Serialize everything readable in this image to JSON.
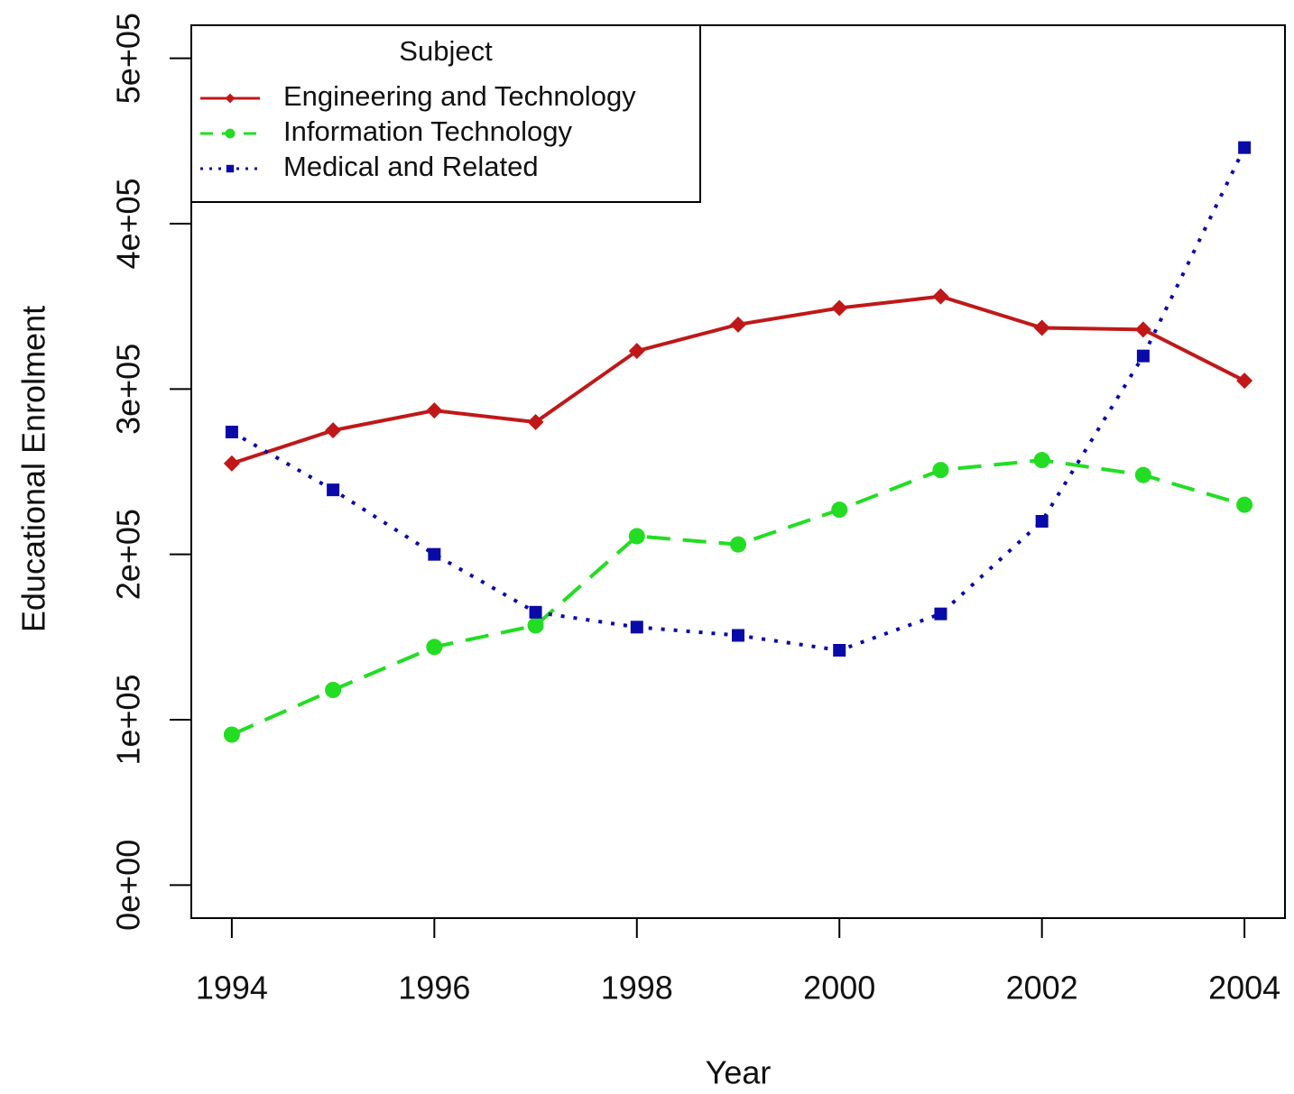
{
  "chart_data": {
    "type": "line",
    "xlabel": "Year",
    "ylabel": "Educational Enrolment",
    "legend_title": "Subject",
    "legend": "top-left",
    "x": [
      1994,
      1995,
      1996,
      1997,
      1998,
      1999,
      2000,
      2001,
      2002,
      2003,
      2004
    ],
    "series": [
      {
        "name": "Engineering and Technology",
        "color": "#c01818",
        "line_style": "solid",
        "marker": "diamond",
        "values": [
          255000,
          275000,
          287000,
          280000,
          323000,
          339000,
          349000,
          356000,
          337000,
          336000,
          305000
        ]
      },
      {
        "name": "Information Technology",
        "color": "#22dd22",
        "line_style": "dashed",
        "marker": "circle",
        "values": [
          91000,
          118000,
          144000,
          157000,
          211000,
          206000,
          227000,
          251000,
          257000,
          248000,
          230000
        ]
      },
      {
        "name": "Medical and Related",
        "color": "#0a0aa8",
        "line_style": "dotted",
        "marker": "square",
        "values": [
          274000,
          239000,
          200000,
          165000,
          156000,
          151000,
          142000,
          164000,
          220000,
          320000,
          446000
        ]
      }
    ],
    "xlim": [
      1993.6,
      2004.4
    ],
    "xticks": [
      1994,
      1996,
      1998,
      2000,
      2002,
      2004
    ],
    "ylim": [
      -20000,
      520000
    ],
    "yticks": [
      {
        "value": 0,
        "label": "0e+00"
      },
      {
        "value": 100000,
        "label": "1e+05"
      },
      {
        "value": 200000,
        "label": "2e+05"
      },
      {
        "value": 300000,
        "label": "3e+05"
      },
      {
        "value": 400000,
        "label": "4e+05"
      },
      {
        "value": 500000,
        "label": "5e+05"
      }
    ]
  }
}
